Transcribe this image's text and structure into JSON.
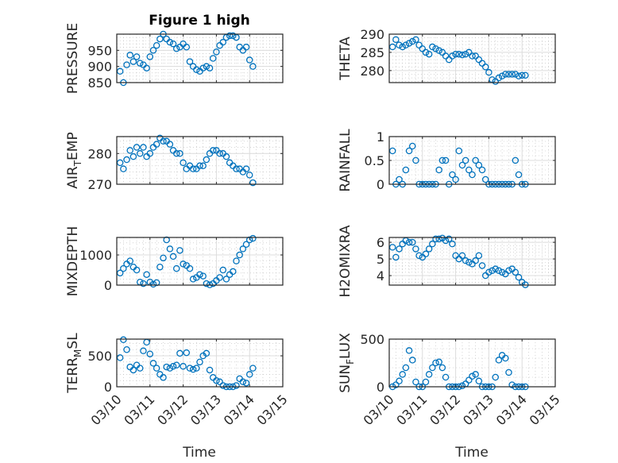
{
  "chart_data": {
    "type": "scatter",
    "title": "Figure 1 high",
    "xlabel": "Time",
    "xtick_labels": [
      "03/10",
      "03/11",
      "03/12",
      "03/13",
      "03/14",
      "03/15"
    ],
    "xlim_days_since_0310": [
      0,
      5
    ],
    "x_days_since_0310": [
      0.1,
      0.2,
      0.3,
      0.4,
      0.5,
      0.6,
      0.7,
      0.8,
      0.9,
      1.0,
      1.1,
      1.2,
      1.3,
      1.4,
      1.5,
      1.6,
      1.7,
      1.8,
      1.9,
      2.0,
      2.1,
      2.2,
      2.3,
      2.4,
      2.5,
      2.6,
      2.7,
      2.8,
      2.9,
      3.0,
      3.1,
      3.2,
      3.3,
      3.4,
      3.5,
      3.6,
      3.7,
      3.8,
      3.9,
      4.0,
      4.1
    ],
    "marker": "circle",
    "color": "#0072BD",
    "grid": "major+minor",
    "panels": [
      {
        "id": "pressure",
        "ylabel": {
          "main": "PRESSURE",
          "sub": "",
          "rest": ""
        },
        "ylim": [
          850,
          1000
        ],
        "yticks": [
          850,
          900,
          950
        ],
        "ytick_labels": [
          "850",
          "900",
          "950"
        ],
        "values": [
          885,
          850,
          905,
          935,
          915,
          930,
          910,
          905,
          895,
          930,
          950,
          965,
          985,
          1000,
          985,
          975,
          970,
          955,
          960,
          970,
          960,
          915,
          900,
          890,
          885,
          895,
          900,
          895,
          925,
          945,
          965,
          975,
          990,
          995,
          995,
          990,
          960,
          950,
          960,
          920,
          900
        ]
      },
      {
        "id": "theta",
        "ylabel": {
          "main": "THETA",
          "sub": "",
          "rest": ""
        },
        "ylim": [
          276.7,
          290
        ],
        "yticks": [
          280,
          285,
          290
        ],
        "ytick_labels": [
          "280",
          "285",
          "290"
        ],
        "values": [
          286.5,
          288.5,
          287,
          286.5,
          287,
          287.5,
          288,
          288.5,
          287,
          286,
          285,
          284.5,
          286.5,
          286,
          285.5,
          285,
          284,
          283,
          284,
          284.5,
          284.5,
          284.3,
          284.5,
          285,
          284,
          284,
          283,
          282,
          281,
          279.5,
          277.5,
          277,
          278,
          278.5,
          279,
          279,
          279,
          279,
          278.5,
          278.7,
          278.7
        ]
      },
      {
        "id": "air-temp",
        "ylabel": {
          "main": "AIR",
          "sub": "T",
          "rest": "EMP"
        },
        "ylim": [
          270,
          285.5
        ],
        "yticks": [
          270,
          280
        ],
        "ytick_labels": [
          "270",
          "280"
        ],
        "values": [
          277,
          275,
          278,
          281,
          279,
          282,
          280,
          282,
          279,
          280,
          282,
          283,
          285,
          284,
          284,
          283,
          281,
          280,
          280,
          277,
          275,
          276,
          275,
          275,
          276,
          276,
          278,
          280,
          281,
          281,
          280,
          280,
          279,
          277,
          276,
          275,
          275,
          274,
          275,
          273,
          270.5
        ]
      },
      {
        "id": "rainfall",
        "ylabel": {
          "main": "RAINFALL",
          "sub": "",
          "rest": ""
        },
        "ylim": [
          0,
          1
        ],
        "yticks": [
          0,
          0.5,
          1
        ],
        "ytick_labels": [
          "0",
          "0.5",
          "1"
        ],
        "values": [
          0.7,
          0,
          0.1,
          0,
          0.3,
          0.7,
          0.8,
          0.5,
          0,
          0,
          0,
          0,
          0,
          0,
          0.3,
          0.5,
          0.5,
          0,
          0.2,
          0.1,
          0.7,
          0.4,
          0.5,
          0.3,
          0.2,
          0.5,
          0.4,
          0.3,
          0.1,
          0,
          0,
          0,
          0,
          0,
          0,
          0,
          0,
          0.5,
          0.2,
          0,
          0
        ]
      },
      {
        "id": "mixdepth",
        "ylabel": {
          "main": "MIXDEPTH",
          "sub": "",
          "rest": ""
        },
        "ylim": [
          0,
          1580
        ],
        "yticks": [
          0,
          1000
        ],
        "ytick_labels": [
          "0",
          "1000"
        ],
        "values": [
          400,
          550,
          700,
          800,
          600,
          500,
          100,
          50,
          350,
          100,
          30,
          80,
          600,
          900,
          1500,
          1200,
          950,
          550,
          1150,
          700,
          650,
          550,
          200,
          250,
          350,
          300,
          50,
          10,
          50,
          150,
          250,
          500,
          200,
          350,
          450,
          800,
          1000,
          1200,
          1350,
          1500,
          1550
        ]
      },
      {
        "id": "h2omixra",
        "ylabel": {
          "main": "H2OMIXRA",
          "sub": "",
          "rest": ""
        },
        "ylim": [
          3.43,
          6.29
        ],
        "yticks": [
          4,
          5,
          6
        ],
        "ytick_labels": [
          "4",
          "5",
          "6"
        ],
        "values": [
          5.7,
          5.1,
          5.6,
          5.9,
          6.1,
          6.0,
          6.0,
          5.6,
          5.2,
          5.1,
          5.3,
          5.6,
          5.9,
          6.2,
          6.2,
          6.25,
          6.1,
          6.2,
          5.9,
          5.2,
          5.0,
          5.2,
          4.9,
          4.8,
          4.7,
          4.9,
          5.2,
          4.6,
          4.0,
          4.2,
          4.3,
          4.4,
          4.3,
          4.2,
          4.1,
          4.3,
          4.4,
          4.2,
          3.9,
          3.6,
          3.45
        ]
      },
      {
        "id": "terr-msl",
        "ylabel": {
          "main": "TERR",
          "sub": "M",
          "rest": "SL"
        },
        "ylim": [
          0,
          770
        ],
        "yticks": [
          0,
          500
        ],
        "ytick_labels": [
          "0",
          "500"
        ],
        "values": [
          470,
          760,
          600,
          320,
          270,
          350,
          300,
          580,
          720,
          530,
          380,
          300,
          200,
          150,
          320,
          300,
          330,
          350,
          540,
          330,
          550,
          300,
          280,
          300,
          400,
          500,
          540,
          270,
          150,
          100,
          80,
          20,
          0,
          0,
          0,
          20,
          130,
          80,
          60,
          200,
          300
        ]
      },
      {
        "id": "sun-flux",
        "ylabel": {
          "main": "SUN",
          "sub": "F",
          "rest": "LUX"
        },
        "ylim": [
          0,
          500
        ],
        "yticks": [
          0,
          500
        ],
        "ytick_labels": [
          "0",
          "500"
        ],
        "values": [
          0,
          20,
          60,
          130,
          200,
          380,
          280,
          50,
          0,
          0,
          50,
          130,
          200,
          250,
          260,
          200,
          100,
          0,
          0,
          0,
          0,
          10,
          30,
          70,
          110,
          130,
          60,
          0,
          0,
          0,
          0,
          100,
          280,
          330,
          300,
          150,
          20,
          0,
          0,
          0,
          0
        ]
      }
    ]
  }
}
